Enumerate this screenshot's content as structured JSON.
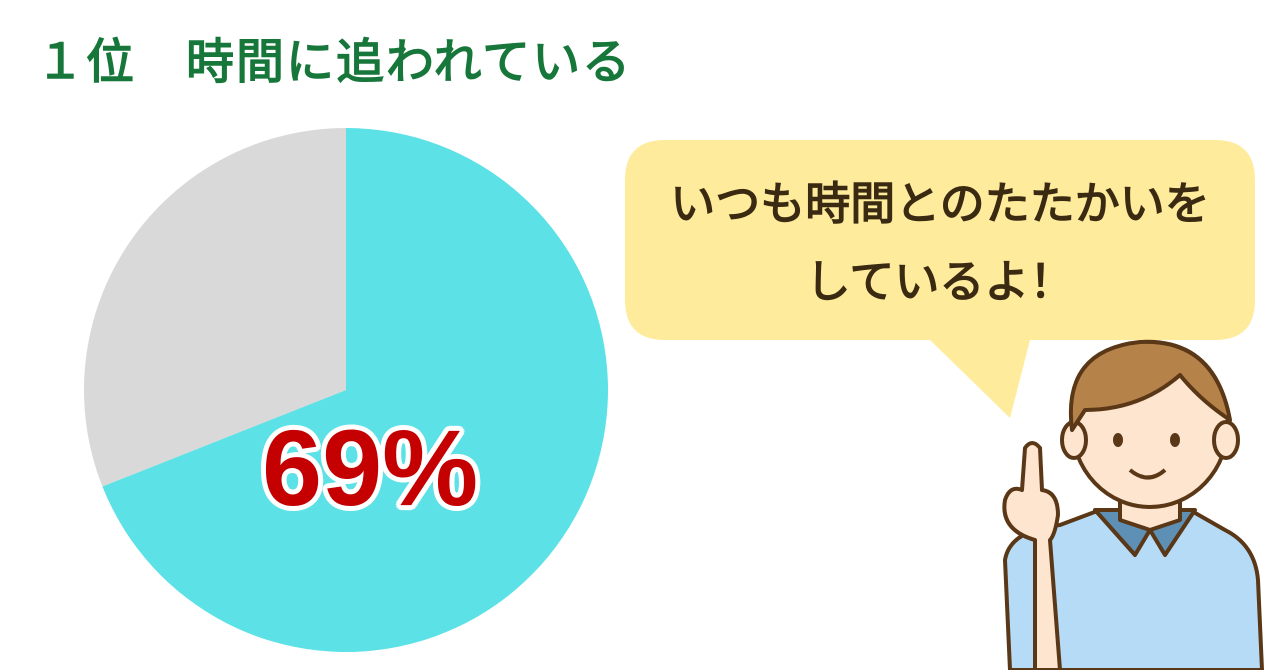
{
  "title": "１位　時間に追われている",
  "chart_data": {
    "type": "pie",
    "start": "top",
    "direction": "clockwise",
    "slices": [
      {
        "value": 69,
        "color": "#5ce1e6"
      },
      {
        "value": 31,
        "color": "#d9d9d9"
      }
    ],
    "data_label": "69%"
  },
  "speech_bubble": {
    "line1": "いつも時間とのたたかいを",
    "line2": "しているよ！",
    "color": "#feeb9c"
  }
}
